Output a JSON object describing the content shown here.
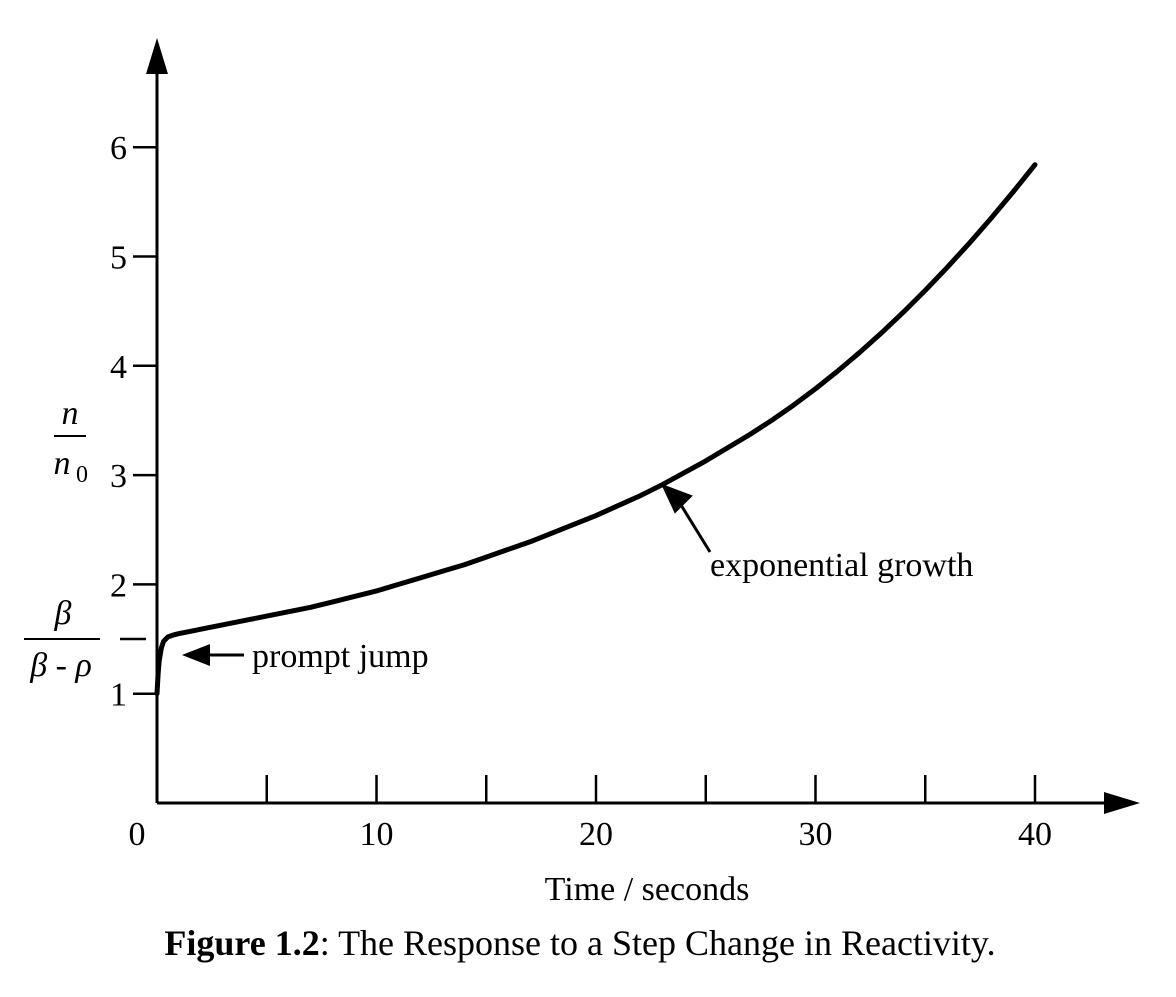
{
  "chart_data": {
    "type": "line",
    "caption_prefix": "Figure 1.2",
    "caption_text": ": The Response to a Step Change in Reactivity.",
    "xlabel": "Time / seconds",
    "ylabel": {
      "numerator": "n",
      "denominator": "n",
      "denominator_subscript": "0"
    },
    "special_ylabel": {
      "numerator": "β",
      "denominator": "β - ρ",
      "value": 1.5
    },
    "xlim": [
      0,
      45
    ],
    "ylim": [
      0,
      6.8
    ],
    "x_ticks": [
      0,
      10,
      20,
      30,
      40
    ],
    "x_ticks_unlabeled": [
      5,
      15,
      25,
      35
    ],
    "y_ticks": [
      1,
      2,
      3,
      4,
      5,
      6
    ],
    "grid": false,
    "series": [
      {
        "x": [
          0,
          0.05,
          0.1,
          0.2,
          0.3,
          0.5,
          0.8,
          1.0,
          1.5,
          2,
          3,
          4,
          5,
          6,
          7,
          8,
          9,
          10,
          11,
          12,
          13,
          14,
          15,
          16,
          17,
          18,
          19,
          20,
          21,
          22,
          23,
          24,
          25,
          26,
          27,
          28,
          29,
          30,
          31,
          32,
          33,
          34,
          35,
          36,
          37,
          38,
          39,
          40
        ],
        "y": [
          1.0,
          1.18,
          1.3,
          1.42,
          1.48,
          1.52,
          1.54,
          1.55,
          1.57,
          1.59,
          1.63,
          1.67,
          1.71,
          1.75,
          1.79,
          1.84,
          1.89,
          1.94,
          2.0,
          2.06,
          2.12,
          2.18,
          2.25,
          2.32,
          2.39,
          2.47,
          2.55,
          2.63,
          2.72,
          2.81,
          2.91,
          3.02,
          3.13,
          3.25,
          3.37,
          3.5,
          3.64,
          3.79,
          3.95,
          4.12,
          4.3,
          4.49,
          4.69,
          4.9,
          5.12,
          5.35,
          5.59,
          5.84
        ]
      }
    ],
    "annotations": [
      {
        "text": "prompt jump",
        "x": 1.0,
        "y": 1.4
      },
      {
        "text": "exponential growth",
        "x": 23,
        "y": 2.95
      }
    ]
  }
}
